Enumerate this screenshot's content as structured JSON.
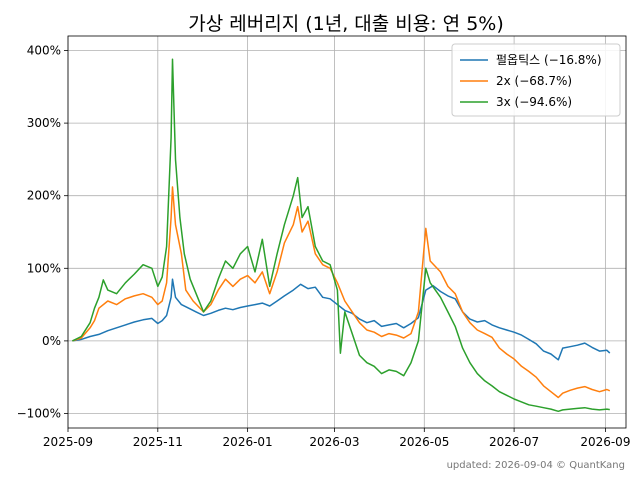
{
  "chart_data": {
    "type": "line",
    "title": "가상 레버리지 (1년, 대출 비용: 연 5%)",
    "xlabel": "",
    "ylabel": "",
    "x_ticks": [
      "2025-09",
      "2025-11",
      "2026-01",
      "2026-03",
      "2026-05",
      "2026-07",
      "2026-09"
    ],
    "y_ticks": [
      "−100%",
      "0%",
      "100%",
      "200%",
      "300%",
      "400%"
    ],
    "ylim": [
      -120,
      420
    ],
    "xlim": [
      "2025-09-01",
      "2026-09-15"
    ],
    "grid": true,
    "legend_position": "top-right",
    "series": [
      {
        "name": "펄옵틱스 (−16.8%)",
        "color": "#1f77b4",
        "points": [
          [
            "2025-09-04",
            0
          ],
          [
            "2025-09-10",
            2
          ],
          [
            "2025-09-16",
            6
          ],
          [
            "2025-09-22",
            9
          ],
          [
            "2025-09-28",
            14
          ],
          [
            "2025-10-04",
            18
          ],
          [
            "2025-10-10",
            22
          ],
          [
            "2025-10-16",
            26
          ],
          [
            "2025-10-22",
            29
          ],
          [
            "2025-10-28",
            31
          ],
          [
            "2025-11-01",
            24
          ],
          [
            "2025-11-04",
            28
          ],
          [
            "2025-11-07",
            35
          ],
          [
            "2025-11-10",
            60
          ],
          [
            "2025-11-11",
            85
          ],
          [
            "2025-11-13",
            60
          ],
          [
            "2025-11-17",
            50
          ],
          [
            "2025-11-22",
            45
          ],
          [
            "2025-11-27",
            40
          ],
          [
            "2025-12-02",
            35
          ],
          [
            "2025-12-07",
            38
          ],
          [
            "2025-12-12",
            42
          ],
          [
            "2025-12-17",
            45
          ],
          [
            "2025-12-22",
            43
          ],
          [
            "2025-12-27",
            46
          ],
          [
            "2026-01-01",
            48
          ],
          [
            "2026-01-06",
            50
          ],
          [
            "2026-01-11",
            52
          ],
          [
            "2026-01-16",
            48
          ],
          [
            "2026-01-21",
            55
          ],
          [
            "2026-01-26",
            62
          ],
          [
            "2026-02-01",
            70
          ],
          [
            "2026-02-06",
            78
          ],
          [
            "2026-02-11",
            72
          ],
          [
            "2026-02-16",
            74
          ],
          [
            "2026-02-21",
            60
          ],
          [
            "2026-02-26",
            58
          ],
          [
            "2026-03-03",
            50
          ],
          [
            "2026-03-08",
            42
          ],
          [
            "2026-03-13",
            38
          ],
          [
            "2026-03-18",
            30
          ],
          [
            "2026-03-23",
            25
          ],
          [
            "2026-03-28",
            28
          ],
          [
            "2026-04-02",
            20
          ],
          [
            "2026-04-07",
            22
          ],
          [
            "2026-04-12",
            24
          ],
          [
            "2026-04-17",
            18
          ],
          [
            "2026-04-22",
            24
          ],
          [
            "2026-04-27",
            32
          ],
          [
            "2026-05-02",
            70
          ],
          [
            "2026-05-07",
            76
          ],
          [
            "2026-05-12",
            68
          ],
          [
            "2026-05-17",
            62
          ],
          [
            "2026-05-22",
            58
          ],
          [
            "2026-05-27",
            40
          ],
          [
            "2026-06-01",
            30
          ],
          [
            "2026-06-06",
            26
          ],
          [
            "2026-06-11",
            28
          ],
          [
            "2026-06-16",
            22
          ],
          [
            "2026-06-21",
            18
          ],
          [
            "2026-06-26",
            15
          ],
          [
            "2026-07-01",
            12
          ],
          [
            "2026-07-06",
            8
          ],
          [
            "2026-07-11",
            2
          ],
          [
            "2026-07-16",
            -4
          ],
          [
            "2026-07-21",
            -14
          ],
          [
            "2026-07-26",
            -18
          ],
          [
            "2026-07-31",
            -26
          ],
          [
            "2026-08-03",
            -10
          ],
          [
            "2026-08-08",
            -8
          ],
          [
            "2026-08-13",
            -6
          ],
          [
            "2026-08-18",
            -3
          ],
          [
            "2026-08-23",
            -9
          ],
          [
            "2026-08-28",
            -14
          ],
          [
            "2026-09-02",
            -13
          ],
          [
            "2026-09-04",
            -16.8
          ]
        ]
      },
      {
        "name": "2x (−68.7%)",
        "color": "#ff7f0e",
        "points": [
          [
            "2025-09-04",
            0
          ],
          [
            "2025-09-10",
            4
          ],
          [
            "2025-09-16",
            18
          ],
          [
            "2025-09-19",
            28
          ],
          [
            "2025-09-22",
            45
          ],
          [
            "2025-09-28",
            55
          ],
          [
            "2025-10-04",
            50
          ],
          [
            "2025-10-10",
            58
          ],
          [
            "2025-10-16",
            62
          ],
          [
            "2025-10-22",
            65
          ],
          [
            "2025-10-28",
            60
          ],
          [
            "2025-11-01",
            50
          ],
          [
            "2025-11-04",
            55
          ],
          [
            "2025-11-07",
            80
          ],
          [
            "2025-11-10",
            170
          ],
          [
            "2025-11-11",
            212
          ],
          [
            "2025-11-13",
            160
          ],
          [
            "2025-11-17",
            120
          ],
          [
            "2025-11-20",
            70
          ],
          [
            "2025-11-25",
            55
          ],
          [
            "2025-12-02",
            40
          ],
          [
            "2025-12-07",
            50
          ],
          [
            "2025-12-12",
            70
          ],
          [
            "2025-12-17",
            85
          ],
          [
            "2025-12-22",
            75
          ],
          [
            "2025-12-27",
            85
          ],
          [
            "2026-01-01",
            90
          ],
          [
            "2026-01-06",
            80
          ],
          [
            "2026-01-11",
            95
          ],
          [
            "2026-01-16",
            65
          ],
          [
            "2026-01-21",
            95
          ],
          [
            "2026-01-26",
            135
          ],
          [
            "2026-02-01",
            160
          ],
          [
            "2026-02-04",
            185
          ],
          [
            "2026-02-07",
            150
          ],
          [
            "2026-02-11",
            165
          ],
          [
            "2026-02-16",
            120
          ],
          [
            "2026-02-21",
            105
          ],
          [
            "2026-02-26",
            100
          ],
          [
            "2026-03-03",
            80
          ],
          [
            "2026-03-08",
            55
          ],
          [
            "2026-03-13",
            40
          ],
          [
            "2026-03-18",
            25
          ],
          [
            "2026-03-23",
            15
          ],
          [
            "2026-03-28",
            12
          ],
          [
            "2026-04-02",
            6
          ],
          [
            "2026-04-07",
            10
          ],
          [
            "2026-04-12",
            8
          ],
          [
            "2026-04-17",
            4
          ],
          [
            "2026-04-22",
            10
          ],
          [
            "2026-04-27",
            40
          ],
          [
            "2026-05-02",
            155
          ],
          [
            "2026-05-05",
            110
          ],
          [
            "2026-05-12",
            95
          ],
          [
            "2026-05-17",
            75
          ],
          [
            "2026-05-22",
            65
          ],
          [
            "2026-05-27",
            40
          ],
          [
            "2026-06-01",
            25
          ],
          [
            "2026-06-06",
            15
          ],
          [
            "2026-06-11",
            10
          ],
          [
            "2026-06-16",
            5
          ],
          [
            "2026-06-21",
            -10
          ],
          [
            "2026-06-26",
            -18
          ],
          [
            "2026-07-01",
            -25
          ],
          [
            "2026-07-06",
            -35
          ],
          [
            "2026-07-11",
            -42
          ],
          [
            "2026-07-16",
            -50
          ],
          [
            "2026-07-21",
            -62
          ],
          [
            "2026-07-26",
            -70
          ],
          [
            "2026-07-31",
            -78
          ],
          [
            "2026-08-03",
            -72
          ],
          [
            "2026-08-08",
            -68
          ],
          [
            "2026-08-13",
            -65
          ],
          [
            "2026-08-18",
            -63
          ],
          [
            "2026-08-23",
            -67
          ],
          [
            "2026-08-28",
            -70
          ],
          [
            "2026-09-02",
            -67
          ],
          [
            "2026-09-04",
            -68.7
          ]
        ]
      },
      {
        "name": "3x (−94.6%)",
        "color": "#2ca02c",
        "points": [
          [
            "2025-09-04",
            0
          ],
          [
            "2025-09-10",
            6
          ],
          [
            "2025-09-16",
            25
          ],
          [
            "2025-09-19",
            45
          ],
          [
            "2025-09-22",
            60
          ],
          [
            "2025-09-25",
            84
          ],
          [
            "2025-09-28",
            70
          ],
          [
            "2025-10-04",
            65
          ],
          [
            "2025-10-10",
            80
          ],
          [
            "2025-10-16",
            92
          ],
          [
            "2025-10-22",
            105
          ],
          [
            "2025-10-28",
            100
          ],
          [
            "2025-11-01",
            75
          ],
          [
            "2025-11-04",
            88
          ],
          [
            "2025-11-07",
            130
          ],
          [
            "2025-11-10",
            280
          ],
          [
            "2025-11-11",
            388
          ],
          [
            "2025-11-13",
            250
          ],
          [
            "2025-11-16",
            170
          ],
          [
            "2025-11-19",
            120
          ],
          [
            "2025-11-23",
            85
          ],
          [
            "2025-11-28",
            60
          ],
          [
            "2025-12-02",
            40
          ],
          [
            "2025-12-07",
            55
          ],
          [
            "2025-12-12",
            85
          ],
          [
            "2025-12-17",
            110
          ],
          [
            "2025-12-22",
            100
          ],
          [
            "2025-12-27",
            120
          ],
          [
            "2026-01-01",
            130
          ],
          [
            "2026-01-06",
            95
          ],
          [
            "2026-01-11",
            140
          ],
          [
            "2026-01-16",
            75
          ],
          [
            "2026-01-21",
            120
          ],
          [
            "2026-01-26",
            160
          ],
          [
            "2026-02-01",
            200
          ],
          [
            "2026-02-04",
            225
          ],
          [
            "2026-02-07",
            170
          ],
          [
            "2026-02-11",
            185
          ],
          [
            "2026-02-16",
            130
          ],
          [
            "2026-02-21",
            110
          ],
          [
            "2026-02-26",
            105
          ],
          [
            "2026-03-03",
            70
          ],
          [
            "2026-03-05",
            -17
          ],
          [
            "2026-03-08",
            40
          ],
          [
            "2026-03-13",
            10
          ],
          [
            "2026-03-18",
            -20
          ],
          [
            "2026-03-23",
            -30
          ],
          [
            "2026-03-28",
            -35
          ],
          [
            "2026-04-02",
            -45
          ],
          [
            "2026-04-07",
            -40
          ],
          [
            "2026-04-12",
            -42
          ],
          [
            "2026-04-17",
            -48
          ],
          [
            "2026-04-22",
            -30
          ],
          [
            "2026-04-27",
            0
          ],
          [
            "2026-05-02",
            100
          ],
          [
            "2026-05-05",
            80
          ],
          [
            "2026-05-12",
            60
          ],
          [
            "2026-05-17",
            40
          ],
          [
            "2026-05-22",
            20
          ],
          [
            "2026-05-27",
            -10
          ],
          [
            "2026-06-01",
            -30
          ],
          [
            "2026-06-06",
            -45
          ],
          [
            "2026-06-11",
            -55
          ],
          [
            "2026-06-16",
            -62
          ],
          [
            "2026-06-21",
            -70
          ],
          [
            "2026-06-26",
            -75
          ],
          [
            "2026-07-01",
            -80
          ],
          [
            "2026-07-06",
            -84
          ],
          [
            "2026-07-11",
            -88
          ],
          [
            "2026-07-16",
            -90
          ],
          [
            "2026-07-21",
            -92
          ],
          [
            "2026-07-26",
            -94
          ],
          [
            "2026-07-31",
            -97
          ],
          [
            "2026-08-03",
            -95
          ],
          [
            "2026-08-08",
            -94
          ],
          [
            "2026-08-13",
            -93
          ],
          [
            "2026-08-18",
            -92
          ],
          [
            "2026-08-23",
            -94
          ],
          [
            "2026-08-28",
            -95
          ],
          [
            "2026-09-02",
            -94
          ],
          [
            "2026-09-04",
            -94.6
          ]
        ]
      }
    ],
    "footer": "updated: 2026-09-04 © QuantKang"
  }
}
